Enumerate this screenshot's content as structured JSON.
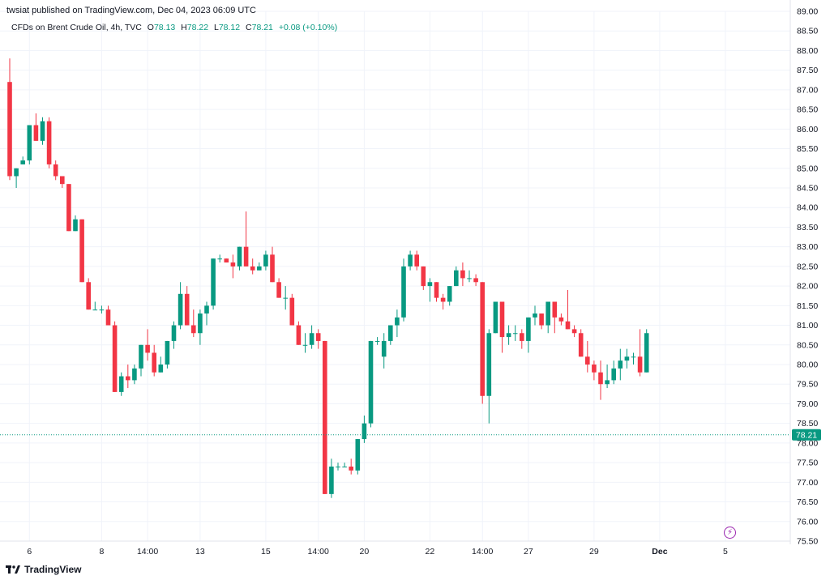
{
  "header": {
    "publisher": "twsiat published on TradingView.com, Dec 04, 2023 06:09 UTC"
  },
  "legend": {
    "symbol": "CFDs on Brent Crude Oil, 4h, TVC",
    "o_label": "O",
    "o_value": "78.13",
    "h_label": "H",
    "h_value": "78.22",
    "l_label": "L",
    "l_value": "78.12",
    "c_label": "C",
    "c_value": "78.21",
    "change": "+0.08 (+0.10%)"
  },
  "footer": {
    "brand": "TradingView"
  },
  "colors": {
    "up": "#089981",
    "down": "#f23645",
    "grid": "#f0f3fa",
    "axis_text": "#131722",
    "accent": "#9c27b0"
  },
  "chart_data": {
    "type": "candlestick",
    "ylim": [
      75.5,
      89.0
    ],
    "y_ticks": [
      "75.50",
      "76.00",
      "76.50",
      "77.00",
      "77.50",
      "78.00",
      "78.50",
      "79.00",
      "79.50",
      "80.00",
      "80.50",
      "81.00",
      "81.50",
      "82.00",
      "82.50",
      "83.00",
      "83.50",
      "84.00",
      "84.50",
      "85.00",
      "85.50",
      "86.00",
      "86.50",
      "87.00",
      "87.50",
      "88.00",
      "88.50",
      "89.00"
    ],
    "x_ticks": [
      {
        "label": "6",
        "index": 3
      },
      {
        "label": "8",
        "index": 14
      },
      {
        "label": "14:00",
        "index": 21
      },
      {
        "label": "13",
        "index": 29
      },
      {
        "label": "15",
        "index": 39
      },
      {
        "label": "14:00",
        "index": 47
      },
      {
        "label": "20",
        "index": 54
      },
      {
        "label": "22",
        "index": 64
      },
      {
        "label": "14:00",
        "index": 72
      },
      {
        "label": "27",
        "index": 79
      },
      {
        "label": "29",
        "index": 89
      },
      {
        "label": "Dec",
        "index": 99
      },
      {
        "label": "5",
        "index": 109
      }
    ],
    "last_price": 78.21,
    "last_price_label": "78.21",
    "candles": [
      [
        87.2,
        87.8,
        84.7,
        84.8
      ],
      [
        84.8,
        85.0,
        84.5,
        85.0
      ],
      [
        85.1,
        85.3,
        85.1,
        85.2
      ],
      [
        85.2,
        86.1,
        85.1,
        86.1
      ],
      [
        86.1,
        86.4,
        85.7,
        85.7
      ],
      [
        85.7,
        86.3,
        85.6,
        86.2
      ],
      [
        86.2,
        86.3,
        85.0,
        85.1
      ],
      [
        85.1,
        85.2,
        84.7,
        84.8
      ],
      [
        84.8,
        84.7,
        84.5,
        84.6
      ],
      [
        84.6,
        84.6,
        83.4,
        83.4
      ],
      [
        83.4,
        83.8,
        83.4,
        83.7
      ],
      [
        83.7,
        83.7,
        82.1,
        82.1
      ],
      [
        82.1,
        82.2,
        81.4,
        81.4
      ],
      [
        81.4,
        81.6,
        81.4,
        81.4
      ],
      [
        81.4,
        81.5,
        81.3,
        81.4
      ],
      [
        81.4,
        81.5,
        81.0,
        81.0
      ],
      [
        81.0,
        81.1,
        79.3,
        79.3
      ],
      [
        79.3,
        79.8,
        79.2,
        79.7
      ],
      [
        79.7,
        80.0,
        79.4,
        79.6
      ],
      [
        79.6,
        80.0,
        79.5,
        79.9
      ],
      [
        79.9,
        80.5,
        79.7,
        80.5
      ],
      [
        80.5,
        80.9,
        80.1,
        80.3
      ],
      [
        80.3,
        80.5,
        79.7,
        79.8
      ],
      [
        79.8,
        80.2,
        79.8,
        80.0
      ],
      [
        80.0,
        80.6,
        79.9,
        80.6
      ],
      [
        80.6,
        81.1,
        80.4,
        81.0
      ],
      [
        81.0,
        82.1,
        80.9,
        81.8
      ],
      [
        81.8,
        82.0,
        81.0,
        81.0
      ],
      [
        81.0,
        81.4,
        80.7,
        80.8
      ],
      [
        80.8,
        81.4,
        80.5,
        81.3
      ],
      [
        81.3,
        81.6,
        81.0,
        81.5
      ],
      [
        81.5,
        82.7,
        81.4,
        82.7
      ],
      [
        82.7,
        82.8,
        82.6,
        82.7
      ],
      [
        82.7,
        82.7,
        82.6,
        82.6
      ],
      [
        82.6,
        82.8,
        82.2,
        82.5
      ],
      [
        82.5,
        83.0,
        82.4,
        83.0
      ],
      [
        83.0,
        83.9,
        82.5,
        82.5
      ],
      [
        82.5,
        82.7,
        82.3,
        82.4
      ],
      [
        82.4,
        82.6,
        82.4,
        82.5
      ],
      [
        82.5,
        82.9,
        82.4,
        82.8
      ],
      [
        82.8,
        83.0,
        82.1,
        82.1
      ],
      [
        82.1,
        82.2,
        81.7,
        81.7
      ],
      [
        81.7,
        82.0,
        81.4,
        81.7
      ],
      [
        81.7,
        81.8,
        81.0,
        81.0
      ],
      [
        81.0,
        81.1,
        80.5,
        80.5
      ],
      [
        80.5,
        80.8,
        80.3,
        80.5
      ],
      [
        80.5,
        81.0,
        80.4,
        80.8
      ],
      [
        80.8,
        80.9,
        80.4,
        80.6
      ],
      [
        80.6,
        80.6,
        76.7,
        76.7
      ],
      [
        76.7,
        77.6,
        76.6,
        77.4
      ],
      [
        77.4,
        77.5,
        77.3,
        77.4
      ],
      [
        77.4,
        77.5,
        77.4,
        77.4
      ],
      [
        77.4,
        77.6,
        77.2,
        77.3
      ],
      [
        77.3,
        78.1,
        77.2,
        78.1
      ],
      [
        78.1,
        78.7,
        78.0,
        78.5
      ],
      [
        78.5,
        80.6,
        78.4,
        80.6
      ],
      [
        80.6,
        80.7,
        80.5,
        80.6
      ],
      [
        80.2,
        80.8,
        79.9,
        80.6
      ],
      [
        80.6,
        81.0,
        80.5,
        81.0
      ],
      [
        81.0,
        81.4,
        80.7,
        81.2
      ],
      [
        81.2,
        82.7,
        81.1,
        82.5
      ],
      [
        82.5,
        82.9,
        82.4,
        82.8
      ],
      [
        82.8,
        82.9,
        82.4,
        82.5
      ],
      [
        82.5,
        82.5,
        81.9,
        82.0
      ],
      [
        82.0,
        82.2,
        81.6,
        82.1
      ],
      [
        82.1,
        82.1,
        81.6,
        81.7
      ],
      [
        81.7,
        81.8,
        81.4,
        81.6
      ],
      [
        81.6,
        82.0,
        81.5,
        82.0
      ],
      [
        82.0,
        82.5,
        82.0,
        82.4
      ],
      [
        82.4,
        82.6,
        82.0,
        82.2
      ],
      [
        82.2,
        82.4,
        82.1,
        82.2
      ],
      [
        82.2,
        82.3,
        82.0,
        82.1
      ],
      [
        82.1,
        82.1,
        79.0,
        79.2
      ],
      [
        79.2,
        80.9,
        78.5,
        80.8
      ],
      [
        80.8,
        81.6,
        80.8,
        81.6
      ],
      [
        81.6,
        81.6,
        80.3,
        80.7
      ],
      [
        80.7,
        81.0,
        80.5,
        80.8
      ],
      [
        80.8,
        81.0,
        80.6,
        80.8
      ],
      [
        80.8,
        80.9,
        80.4,
        80.6
      ],
      [
        80.6,
        81.2,
        80.3,
        81.2
      ],
      [
        81.2,
        81.5,
        81.0,
        81.3
      ],
      [
        81.3,
        81.3,
        80.9,
        81.0
      ],
      [
        81.0,
        81.6,
        80.8,
        81.6
      ],
      [
        81.6,
        81.6,
        80.8,
        81.2
      ],
      [
        81.2,
        81.3,
        81.0,
        81.1
      ],
      [
        81.1,
        81.9,
        80.9,
        80.9
      ],
      [
        80.9,
        81.0,
        80.7,
        80.8
      ],
      [
        80.8,
        80.9,
        80.2,
        80.2
      ],
      [
        80.2,
        80.6,
        79.8,
        80.0
      ],
      [
        80.0,
        80.1,
        79.6,
        79.8
      ],
      [
        79.8,
        80.1,
        79.1,
        79.5
      ],
      [
        79.5,
        80.0,
        79.4,
        79.6
      ],
      [
        79.6,
        80.1,
        79.5,
        79.9
      ],
      [
        79.9,
        80.4,
        79.6,
        80.1
      ],
      [
        80.1,
        80.4,
        79.9,
        80.2
      ],
      [
        80.2,
        80.3,
        80.0,
        80.2
      ],
      [
        80.2,
        80.9,
        79.7,
        79.8
      ],
      [
        79.8,
        80.9,
        79.8,
        80.8
      ]
    ]
  }
}
